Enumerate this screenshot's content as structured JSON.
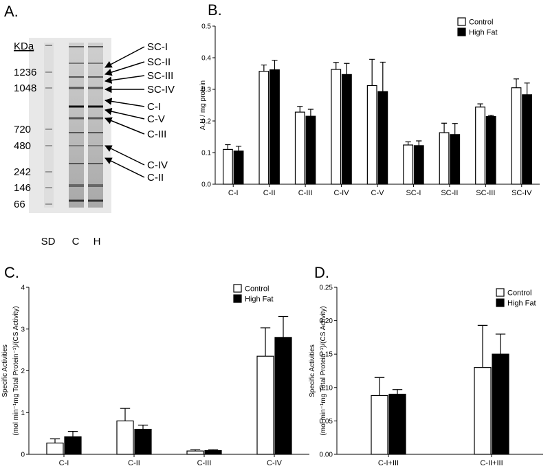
{
  "chart_data": [
    {
      "type": "gel",
      "label": "A.",
      "marker_unit": "KDa",
      "markers": [
        1236,
        1048,
        720,
        480,
        242,
        146,
        66
      ],
      "lanes": [
        "SD",
        "C",
        "H"
      ],
      "bands": [
        "SC-I",
        "SC-II",
        "SC-III",
        "SC-IV",
        "C-I",
        "C-V",
        "C-III",
        "C-IV",
        "C-II"
      ]
    },
    {
      "type": "bar",
      "label": "B.",
      "ylabel": [
        "A.U / mg protein"
      ],
      "categories": [
        "C-I",
        "C-II",
        "C-III",
        "C-IV",
        "C-V",
        "SC-I",
        "SC-II",
        "SC-III",
        "SC-IV"
      ],
      "series": [
        {
          "name": "Control",
          "color": "#ffffff",
          "values": [
            0.11,
            0.357,
            0.228,
            0.363,
            0.312,
            0.124,
            0.163,
            0.244,
            0.305
          ],
          "errors": [
            0.015,
            0.02,
            0.018,
            0.022,
            0.083,
            0.01,
            0.03,
            0.01,
            0.028
          ]
        },
        {
          "name": "High Fat",
          "color": "#000000",
          "values": [
            0.105,
            0.362,
            0.215,
            0.347,
            0.293,
            0.122,
            0.157,
            0.214,
            0.283
          ],
          "errors": [
            0.015,
            0.03,
            0.022,
            0.035,
            0.093,
            0.015,
            0.035,
            0.004,
            0.037
          ]
        }
      ],
      "ylim": [
        0,
        0.5
      ],
      "yticks": [
        {
          "value": 0,
          "label": "0.0"
        },
        0.1,
        0.2,
        0.3,
        0.4,
        0.5
      ],
      "legend": "upper right"
    },
    {
      "type": "bar",
      "label": "C.",
      "ylabel": [
        "Specific Activities",
        "(mol min⁻¹mg Total Protein⁻¹)/(CS Activity)"
      ],
      "categories": [
        "C-I",
        "C-II",
        "C-III",
        "C-IV"
      ],
      "series": [
        {
          "name": "Control",
          "color": "#ffffff",
          "values": [
            0.27,
            0.8,
            0.08,
            2.35
          ],
          "errors": [
            0.1,
            0.3,
            0.03,
            0.68
          ]
        },
        {
          "name": "High Fat",
          "color": "#000000",
          "values": [
            0.42,
            0.6,
            0.09,
            2.8
          ],
          "errors": [
            0.13,
            0.1,
            0.02,
            0.5
          ]
        }
      ],
      "ylim": [
        0,
        4
      ],
      "yticks": [
        0,
        1,
        2,
        3,
        4
      ],
      "legend": "upper right"
    },
    {
      "type": "bar",
      "label": "D.",
      "ylabel": [
        "Specific Activities",
        "(mol min⁻¹mg Total Protein⁻¹)/(CS Activity)"
      ],
      "categories": [
        "C-I+III",
        "C-II+III"
      ],
      "series": [
        {
          "name": "Control",
          "color": "#ffffff",
          "values": [
            0.088,
            0.13
          ],
          "errors": [
            0.027,
            0.063
          ]
        },
        {
          "name": "High Fat",
          "color": "#000000",
          "values": [
            0.09,
            0.15
          ],
          "errors": [
            0.007,
            0.03
          ]
        }
      ],
      "ylim": [
        0,
        0.25
      ],
      "yticks": [
        {
          "value": 0,
          "label": "0.00"
        },
        0.05,
        {
          "value": 0.1,
          "label": "0.10"
        },
        0.15,
        {
          "value": 0.2,
          "label": "0.20"
        },
        0.25
      ],
      "legend": "upper right"
    }
  ]
}
